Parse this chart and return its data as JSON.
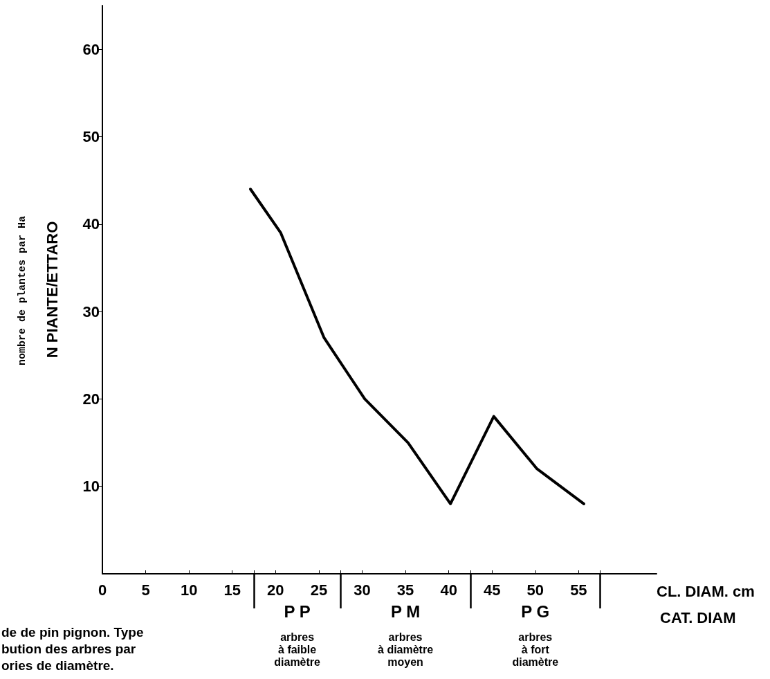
{
  "chart_data": {
    "type": "line",
    "xlabel": "CL. DIAM. cm",
    "ylabel": "N PIANTE/ETTARO",
    "x": [
      17.1,
      20.6,
      25.6,
      30.3,
      35.3,
      40.2,
      45.2,
      50.2,
      55.6
    ],
    "series": [
      {
        "color": "#000000",
        "values": [
          44,
          39,
          27,
          20,
          15,
          8,
          18,
          12,
          8
        ]
      }
    ],
    "xlim": [
      0,
      64
    ],
    "xticks": [
      0,
      5,
      10,
      15,
      {
        "value": 17.5,
        "label": null
      },
      20,
      25,
      {
        "value": 27.5,
        "label": null
      },
      30,
      35,
      40,
      {
        "value": 42.5,
        "label": null
      },
      45,
      50,
      55,
      {
        "value": 57.5,
        "label": null
      }
    ],
    "ylim": [
      0,
      65
    ],
    "yticks": [
      10,
      20,
      30,
      40,
      50,
      60
    ],
    "grid": false,
    "marker": "none",
    "line_style": "solid",
    "annotations": [
      "CAT. DIAM",
      "nombre de plantes par Ha",
      "P P",
      "P M",
      "P G",
      "arbres\nà faible\ndiamètre",
      "arbres\nà diamètre\nmoyen",
      "arbres\nà fort\ndiamètre",
      "de de pin pignon. Type\nbution des arbres par\nories de diamètre."
    ]
  }
}
